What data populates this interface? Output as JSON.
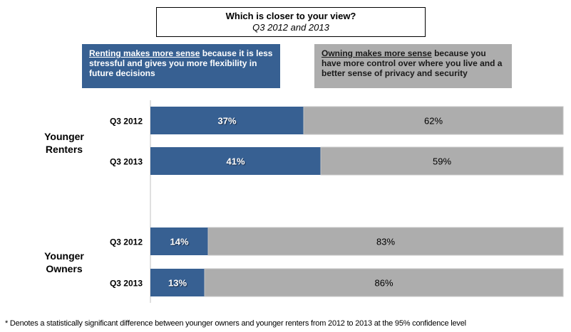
{
  "title": {
    "main": "Which is closer to your view?",
    "subtitle": "Q3 2012 and 2013"
  },
  "legend": [
    {
      "underlined": "Renting makes more sense",
      "rest": " because it is less stressful and gives you more flexibility in future decisions",
      "color": "#376092"
    },
    {
      "underlined": "Owning makes more sense",
      "rest": " because you have more control over where you live and a better sense of privacy and security",
      "color": "#adadad"
    }
  ],
  "footnote": "* Denotes a statistically significant difference between younger owners and younger renters from 2012 to 2013 at the 95% confidence level",
  "chart_data": {
    "type": "bar",
    "orientation": "horizontal",
    "stacked": true,
    "title": "Which is closer to your view?",
    "subtitle": "Q3 2012 and 2013",
    "groups": [
      {
        "name": "Younger Renters",
        "categories": [
          "Q3 2012",
          "Q3 2013"
        ]
      },
      {
        "name": "Younger Owners",
        "categories": [
          "Q3 2012",
          "Q3 2013"
        ]
      }
    ],
    "categories": [
      "Younger Renters Q3 2012",
      "Younger Renters Q3 2013",
      "Younger Owners Q3 2012",
      "Younger Owners Q3 2013"
    ],
    "series": [
      {
        "name": "Renting makes more sense",
        "color": "#376092",
        "label_color": "#ffffff",
        "values": [
          37,
          41,
          14,
          13
        ]
      },
      {
        "name": "Owning makes more sense",
        "color": "#adadad",
        "label_color": "#000000",
        "values": [
          62,
          59,
          83,
          86
        ]
      }
    ],
    "unit": "%",
    "xlim": [
      0,
      100
    ],
    "grid": false,
    "legend_placement": "top"
  }
}
